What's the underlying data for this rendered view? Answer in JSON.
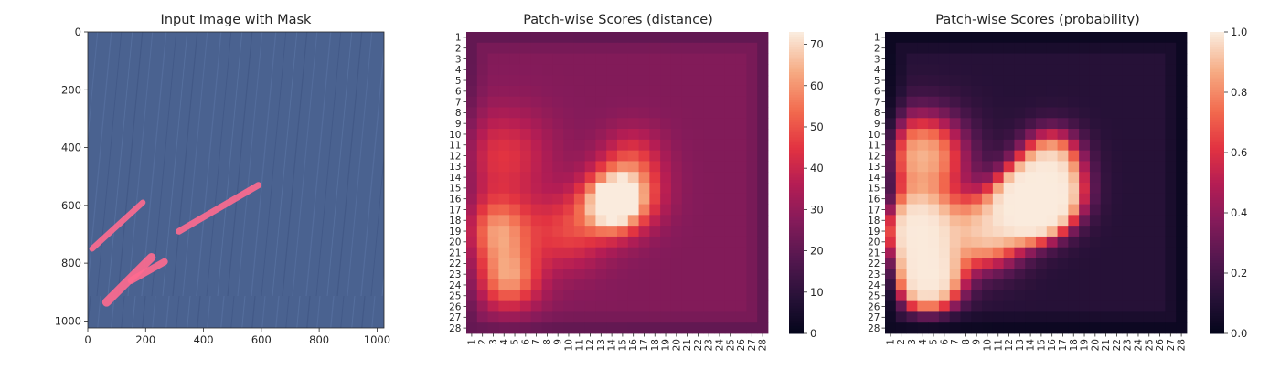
{
  "chart_data": [
    {
      "type": "image",
      "title": "Input Image with Mask",
      "xticks": [
        0,
        200,
        400,
        600,
        800,
        1000
      ],
      "yticks": [
        0,
        200,
        400,
        600,
        800,
        1000
      ],
      "xlim": [
        0,
        1024
      ],
      "ylim": [
        1024,
        0
      ],
      "background_color": "#4a6290",
      "mask_color": "#ff6b8f",
      "mask_strokes": [
        {
          "from": [
            15,
            750
          ],
          "to": [
            190,
            590
          ],
          "width": 20
        },
        {
          "from": [
            315,
            690
          ],
          "to": [
            590,
            530
          ],
          "width": 22
        },
        {
          "from": [
            65,
            935
          ],
          "to": [
            220,
            780
          ],
          "width": 30
        },
        {
          "from": [
            150,
            860
          ],
          "to": [
            265,
            795
          ],
          "width": 24
        }
      ]
    },
    {
      "type": "heatmap",
      "title": "Patch-wise Scores (distance)",
      "xticklabels": [
        "1",
        "2",
        "3",
        "4",
        "5",
        "6",
        "7",
        "8",
        "9",
        "10",
        "11",
        "12",
        "13",
        "14",
        "15",
        "16",
        "17",
        "18",
        "19",
        "20",
        "21",
        "22",
        "23",
        "24",
        "25",
        "26",
        "27",
        "28"
      ],
      "yticklabels": [
        "1",
        "2",
        "3",
        "4",
        "5",
        "6",
        "7",
        "8",
        "9",
        "10",
        "11",
        "12",
        "13",
        "14",
        "15",
        "16",
        "17",
        "18",
        "19",
        "20",
        "21",
        "22",
        "23",
        "24",
        "25",
        "26",
        "27",
        "28"
      ],
      "vmin": 0,
      "vmax": 73,
      "colorbar_ticks": [
        0,
        10,
        20,
        30,
        40,
        50,
        60,
        70
      ],
      "colormap": "rocket",
      "baseline": 27,
      "hotspots": [
        {
          "row": 16.5,
          "col": 14.0,
          "peak": 44,
          "sigma": 1.8
        },
        {
          "row": 15.5,
          "col": 15.5,
          "peak": 30,
          "sigma": 2.2
        },
        {
          "row": 19.0,
          "col": 3.5,
          "peak": 32,
          "sigma": 2.2
        },
        {
          "row": 23.5,
          "col": 4.5,
          "peak": 32,
          "sigma": 2.0
        },
        {
          "row": 12.0,
          "col": 4.0,
          "peak": 18,
          "sigma": 3.0
        },
        {
          "row": 19.0,
          "col": 10.0,
          "peak": 20,
          "sigma": 2.5
        },
        {
          "row": 12.0,
          "col": 16.0,
          "peak": 14,
          "sigma": 2.0
        }
      ]
    },
    {
      "type": "heatmap",
      "title": "Patch-wise Scores (probability)",
      "xticklabels": [
        "1",
        "2",
        "3",
        "4",
        "5",
        "6",
        "7",
        "8",
        "9",
        "10",
        "11",
        "12",
        "13",
        "14",
        "15",
        "16",
        "17",
        "18",
        "19",
        "20",
        "21",
        "22",
        "23",
        "24",
        "25",
        "26",
        "27",
        "28"
      ],
      "yticklabels": [
        "1",
        "2",
        "3",
        "4",
        "5",
        "6",
        "7",
        "8",
        "9",
        "10",
        "11",
        "12",
        "13",
        "14",
        "15",
        "16",
        "17",
        "18",
        "19",
        "20",
        "21",
        "22",
        "23",
        "24",
        "25",
        "26",
        "27",
        "28"
      ],
      "vmin": 0.0,
      "vmax": 1.0,
      "colorbar_ticks": [
        0.0,
        0.2,
        0.4,
        0.6,
        0.8,
        1.0
      ],
      "colorbar_ticklabels": [
        "0.0",
        "0.2",
        "0.4",
        "0.6",
        "0.8",
        "1.0"
      ],
      "colormap": "rocket",
      "transform": "sigmoid((distance - 36) / 4.5)"
    }
  ]
}
